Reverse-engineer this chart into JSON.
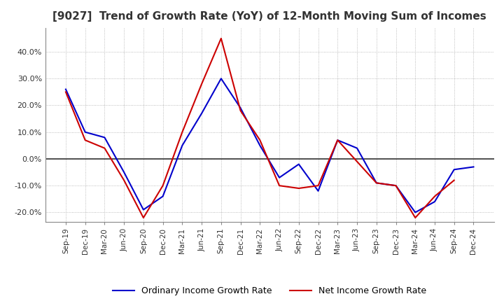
{
  "title": "[9027]  Trend of Growth Rate (YoY) of 12-Month Moving Sum of Incomes",
  "title_fontsize": 11,
  "background_color": "#ffffff",
  "grid_color": "#aaaaaa",
  "x_labels": [
    "Sep-19",
    "Dec-19",
    "Mar-20",
    "Jun-20",
    "Sep-20",
    "Dec-20",
    "Mar-21",
    "Jun-21",
    "Sep-21",
    "Dec-21",
    "Mar-22",
    "Jun-22",
    "Sep-22",
    "Dec-22",
    "Mar-23",
    "Jun-23",
    "Sep-23",
    "Dec-23",
    "Mar-24",
    "Jun-24",
    "Sep-24",
    "Dec-24"
  ],
  "ordinary_income": [
    0.26,
    0.1,
    0.08,
    -0.05,
    -0.19,
    -0.14,
    0.05,
    0.17,
    0.3,
    0.19,
    0.05,
    -0.07,
    -0.02,
    -0.12,
    0.07,
    0.04,
    -0.09,
    -0.1,
    -0.2,
    -0.16,
    -0.04,
    -0.03
  ],
  "net_income": [
    0.25,
    0.07,
    0.04,
    -0.08,
    -0.22,
    -0.1,
    0.1,
    0.28,
    0.45,
    0.18,
    0.07,
    -0.1,
    -0.11,
    -0.1,
    0.07,
    -0.01,
    -0.09,
    -0.1,
    -0.22,
    -0.14,
    -0.08,
    null
  ],
  "ordinary_color": "#0000cc",
  "net_color": "#cc0000",
  "ylim": [
    -0.235,
    0.49
  ],
  "yticks": [
    -0.2,
    -0.1,
    0.0,
    0.1,
    0.2,
    0.3,
    0.4
  ],
  "legend_ordinary": "Ordinary Income Growth Rate",
  "legend_net": "Net Income Growth Rate"
}
